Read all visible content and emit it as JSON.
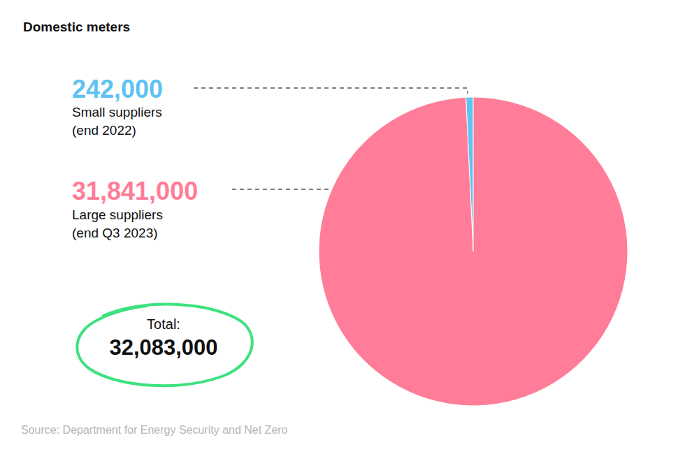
{
  "chart_data": {
    "type": "pie",
    "title": "Domestic meters",
    "categories": [
      "Small suppliers\n(end 2022)",
      "Large suppliers\n(end Q3 2023)"
    ],
    "values": [
      242000,
      31841000
    ],
    "value_labels": [
      "242,000",
      "31,841,000"
    ],
    "colors": [
      "#5ec2f2",
      "#ff7d98"
    ],
    "data_labels": true,
    "total": {
      "label": "Total:",
      "value": 32083000,
      "value_label": "32,083,000"
    },
    "source": "Source: Department for Energy Security and Net Zero"
  }
}
